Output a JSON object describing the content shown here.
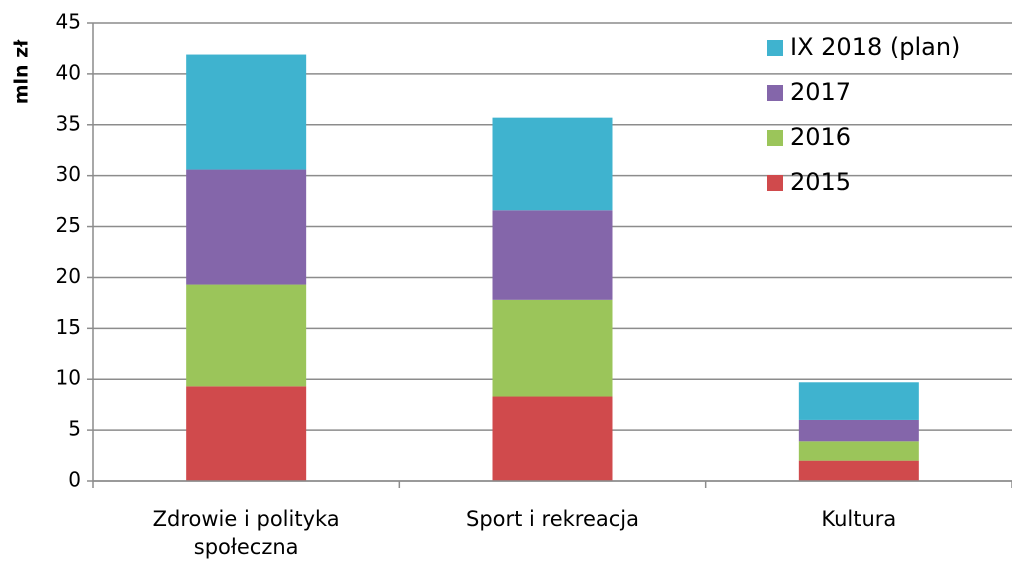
{
  "chart_data": {
    "type": "bar",
    "stacked": true,
    "ylabel": "mln zł",
    "categories": [
      "Zdrowie i polityka społeczna",
      "Sport i rekreacja",
      "Kultura"
    ],
    "series": [
      {
        "name": "2015",
        "color": "#d04a4c",
        "values": [
          9.3,
          8.3,
          2.0
        ]
      },
      {
        "name": "2016",
        "color": "#9bc55a",
        "values": [
          10.0,
          9.5,
          1.9
        ]
      },
      {
        "name": "2017",
        "color": "#8466aa",
        "values": [
          11.3,
          8.8,
          2.1
        ]
      },
      {
        "name": "IX 2018 (plan)",
        "color": "#3fb3cf",
        "values": [
          11.3,
          9.1,
          3.7
        ]
      }
    ],
    "ylim": [
      0,
      45
    ],
    "yticks": [
      0,
      5,
      10,
      15,
      20,
      25,
      30,
      35,
      40,
      45
    ],
    "grid": true,
    "legend": "upper right"
  }
}
